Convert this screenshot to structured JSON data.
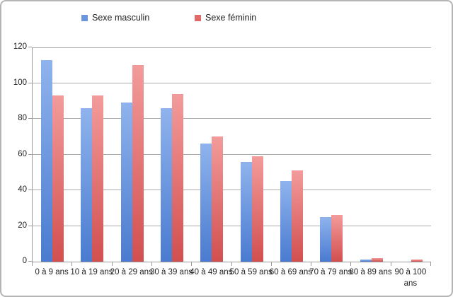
{
  "window": {
    "background": "#ffffff",
    "border_color": "#b5b5b5"
  },
  "legend": {
    "items": [
      {
        "label": "Sexe masculin",
        "color": "#6c95df"
      },
      {
        "label": "Sexe féminin",
        "color": "#e06a6a"
      }
    ]
  },
  "chart_data": {
    "type": "bar",
    "title": "",
    "categories": [
      "0 à 9 ans",
      "10 à 19 ans",
      "20 à 29 ans",
      "30 à 39 ans",
      "40 à 49 ans",
      "50 à 59 ans",
      "60 à 69 ans",
      "70 à 79 ans",
      "80 à 89 ans",
      "90 à 100 ans"
    ],
    "series": [
      {
        "name": "Sexe masculin",
        "values": [
          113,
          86,
          89,
          86,
          66,
          56,
          45,
          25,
          1,
          0
        ],
        "color": "#5b87d7",
        "gradient_top": "#8fb3ed",
        "gradient_bottom": "#4a7bd0"
      },
      {
        "name": "Sexe féminin",
        "values": [
          93,
          93,
          110,
          94,
          70,
          59,
          51,
          26,
          2,
          1
        ],
        "color": "#dd6161",
        "gradient_top": "#f39b9b",
        "gradient_bottom": "#d24f4f"
      }
    ],
    "xlabel": "",
    "ylabel": "",
    "ylim": [
      0,
      120
    ],
    "yticks": [
      0,
      20,
      40,
      60,
      80,
      100,
      120
    ],
    "grid": true,
    "legend_position": "top",
    "colors": {
      "gridline": "#ababab",
      "axis": "#9a9a9a",
      "text": "#1f1f1f"
    }
  }
}
